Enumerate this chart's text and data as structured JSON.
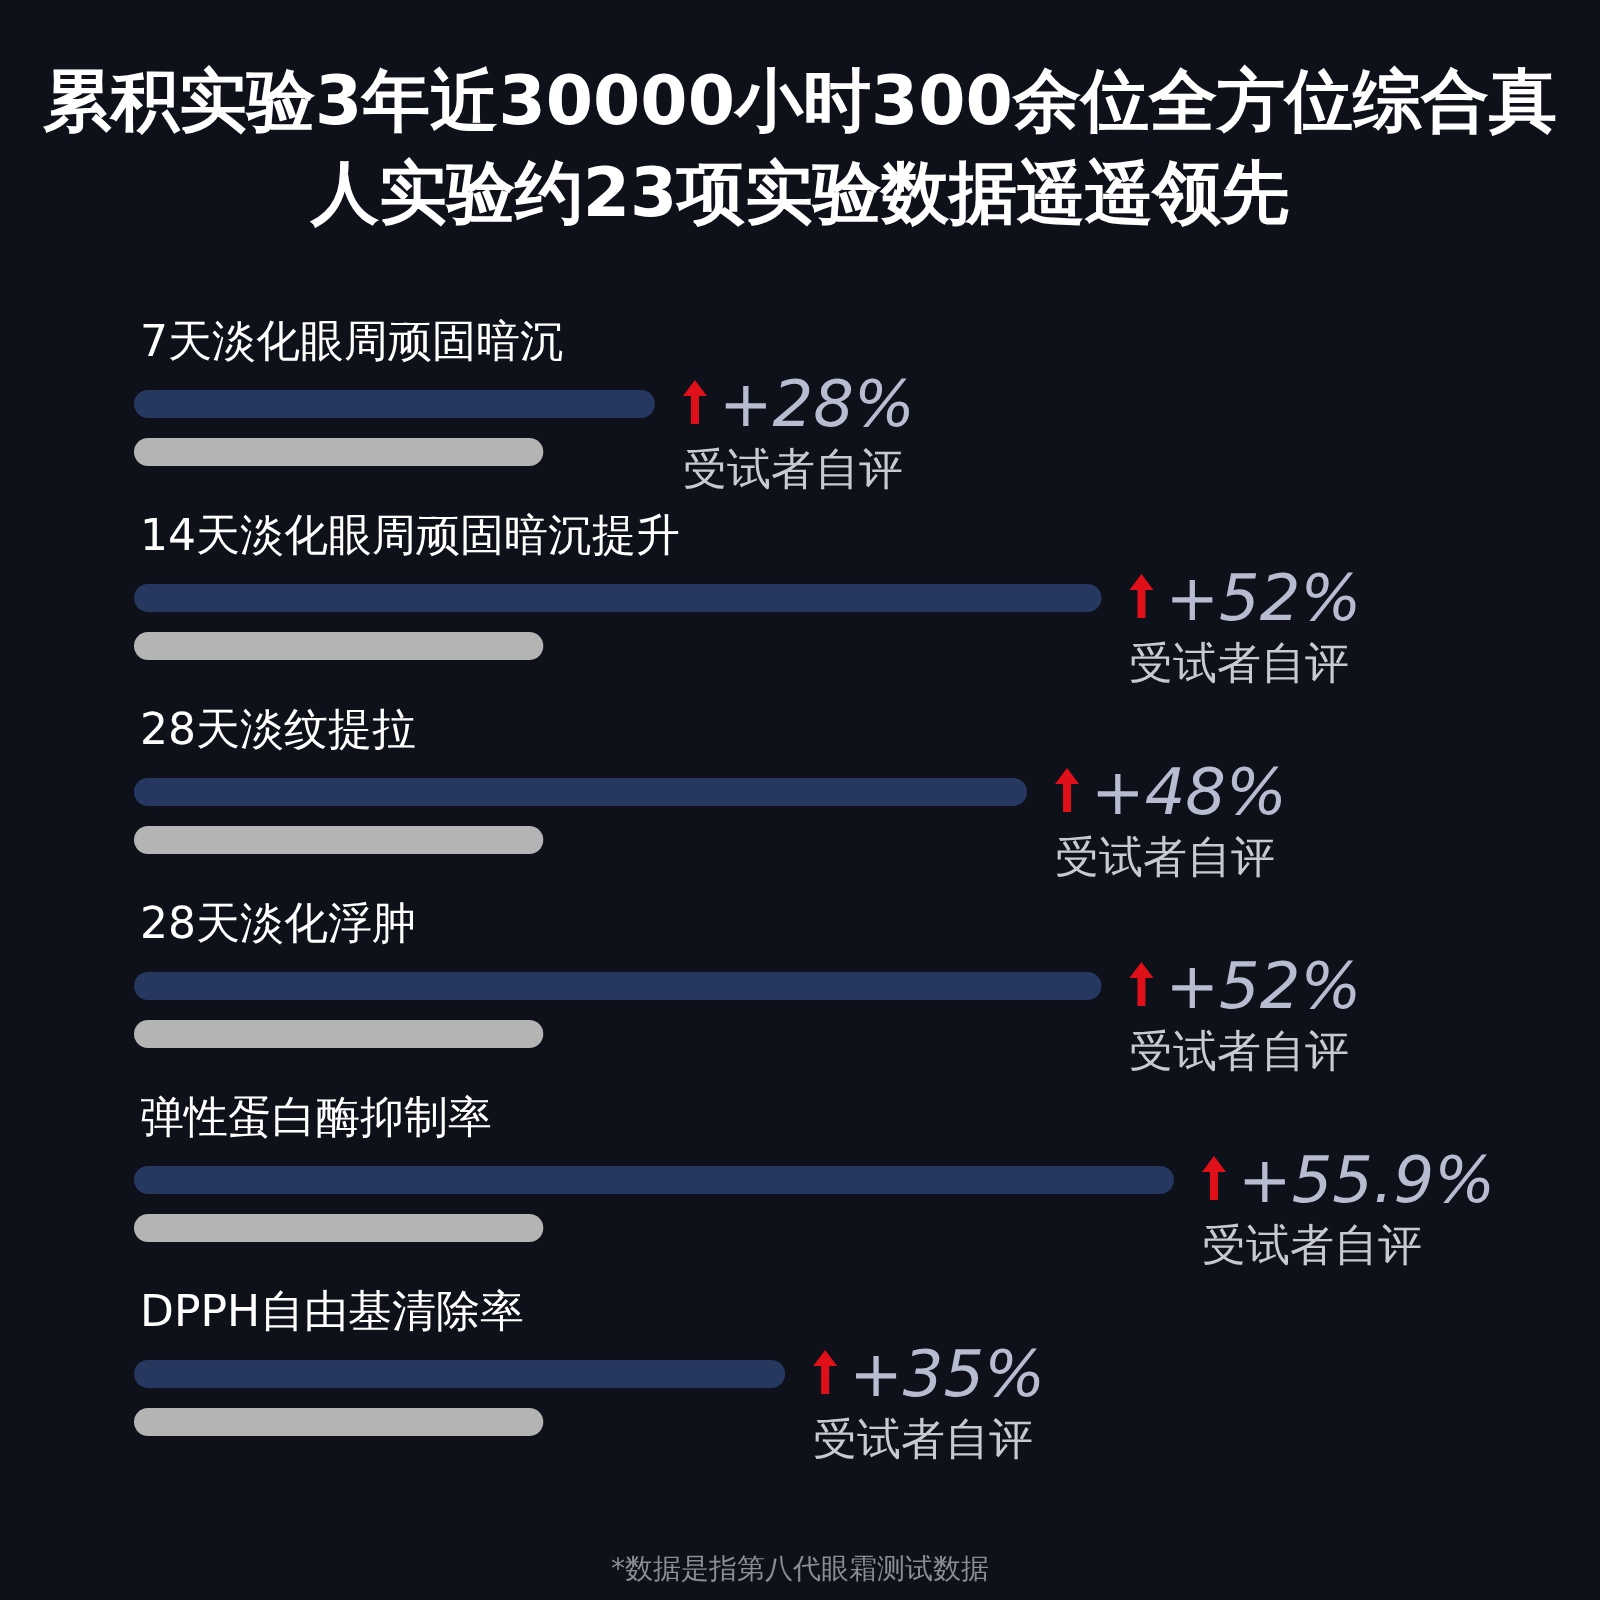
{
  "chart_data": {
    "type": "bar",
    "orientation": "horizontal",
    "title": "累积实验3年近30000小时300余位全方位综合真人实验约23项实验数据遥遥领先",
    "categories": [
      "7天淡化眼周顽固暗沉",
      "14天淡化眼周顽固暗沉提升",
      "28天淡纹提拉",
      "28天淡化浮肿",
      "弹性蛋白酶抑制率",
      "DPPH自由基清除率"
    ],
    "series": [
      {
        "color": "#263760",
        "values": [
          28,
          52,
          48,
          52,
          55.9,
          35
        ],
        "value_labels": [
          "+28%",
          "+52%",
          "+48%",
          "+52%",
          "+55.9%",
          "+35%"
        ]
      },
      {
        "color": "#b4b4b4",
        "values": [
          22,
          22,
          22,
          22,
          22,
          22
        ]
      }
    ],
    "annotations": [
      "受试者自评",
      "受试者自评",
      "受试者自评",
      "受试者自评",
      "受试者自评",
      "受试者自评",
      "*数据是指第八代眼霜测试数据"
    ]
  }
}
